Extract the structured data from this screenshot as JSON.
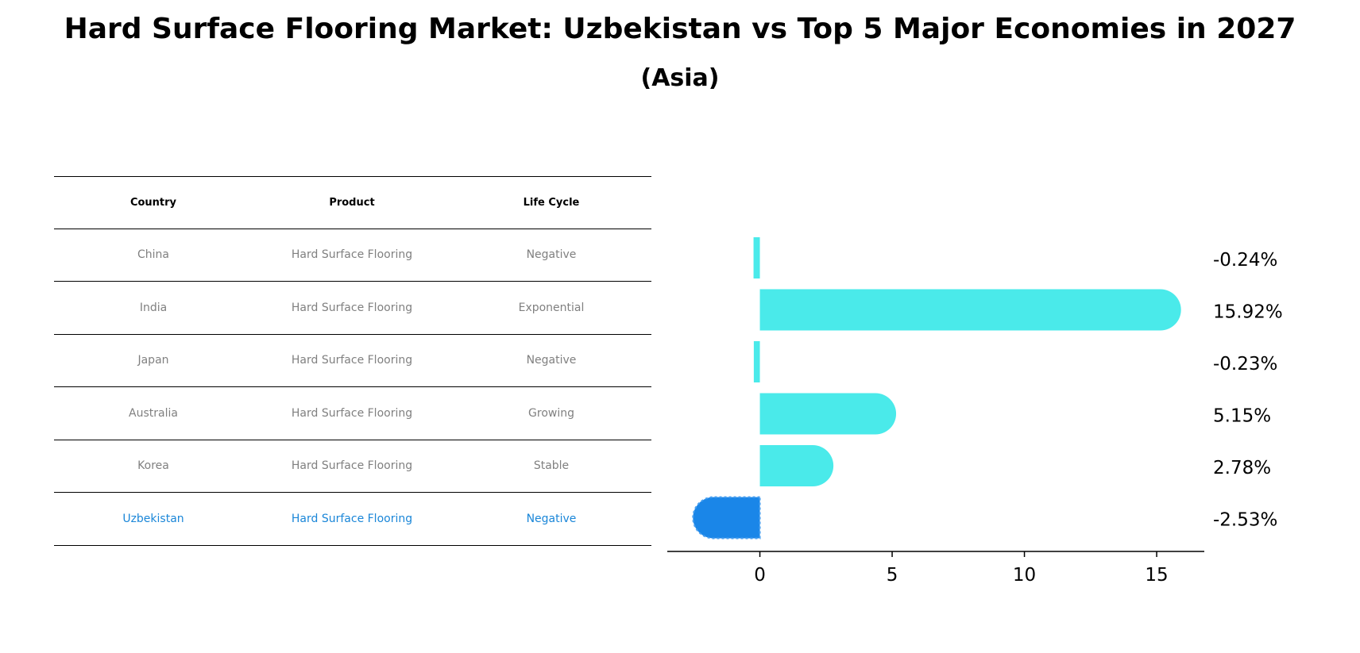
{
  "title": "Hard Surface Flooring Market: Uzbekistan vs Top 5 Major Economies in 2027",
  "subtitle": "(Asia)",
  "table": {
    "headers": [
      "Country",
      "Product",
      "Life Cycle"
    ],
    "rows": [
      {
        "country": "China",
        "product": "Hard Surface Flooring",
        "life_cycle": "Negative"
      },
      {
        "country": "India",
        "product": "Hard Surface Flooring",
        "life_cycle": "Exponential"
      },
      {
        "country": "Japan",
        "product": "Hard Surface Flooring",
        "life_cycle": "Negative"
      },
      {
        "country": "Australia",
        "product": "Hard Surface Flooring",
        "life_cycle": "Growing"
      },
      {
        "country": "Korea",
        "product": "Hard Surface Flooring",
        "life_cycle": "Stable"
      },
      {
        "country": "Uzbekistan",
        "product": "Hard Surface Flooring",
        "life_cycle": "Negative"
      }
    ],
    "highlight_row": "Uzbekistan",
    "text_color": "#808080",
    "highlight_color": "#1a86d8"
  },
  "chart_data": {
    "type": "bar",
    "orientation": "horizontal",
    "categories": [
      "China",
      "India",
      "Japan",
      "Australia",
      "Korea",
      "Uzbekistan"
    ],
    "values": [
      -0.24,
      15.92,
      -0.23,
      5.15,
      2.78,
      -2.53
    ],
    "value_labels": [
      "-0.24%",
      "15.92%",
      "-0.23%",
      "5.15%",
      "2.78%",
      "-2.53%"
    ],
    "xlim": [
      -3.5,
      16.8
    ],
    "xticks": [
      0,
      5,
      10,
      15
    ],
    "grid": false,
    "bar_color": "#4aeaea",
    "highlight_color": "#1a86e8",
    "highlight_category": "Uzbekistan"
  }
}
